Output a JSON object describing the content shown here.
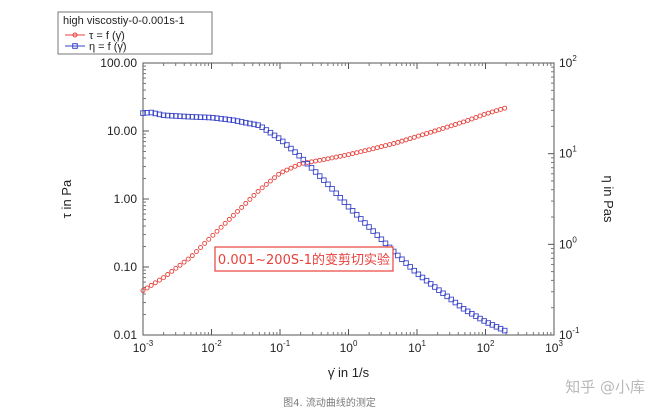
{
  "chart_data": {
    "type": "scatter",
    "title": "",
    "xlabel": "γ̇ in 1/s",
    "ylabel": "τ in Pa",
    "y2label": "η in Pas",
    "xscale": "log",
    "yscale": "log",
    "y2scale": "log",
    "xlim": [
      0.001,
      1000
    ],
    "ylim": [
      0.01,
      100
    ],
    "y2lim": [
      0.1,
      100
    ],
    "x_ticks": [
      {
        "base": "10",
        "exp": "-3"
      },
      {
        "base": "10",
        "exp": "-2"
      },
      {
        "base": "10",
        "exp": "-1"
      },
      {
        "base": "10",
        "exp": "0"
      },
      {
        "base": "10",
        "exp": "1"
      },
      {
        "base": "10",
        "exp": "2"
      },
      {
        "base": "10",
        "exp": "3"
      }
    ],
    "y_ticks": [
      "0.01",
      "0.10",
      "1.00",
      "10.00",
      "100.00"
    ],
    "y2_ticks": [
      {
        "base": "10",
        "exp": "-1"
      },
      {
        "base": "10",
        "exp": "0"
      },
      {
        "base": "10",
        "exp": "1"
      },
      {
        "base": "10",
        "exp": "2"
      }
    ],
    "legend_title": "high viscostiy-0-0.001s-1",
    "legend_position": "top-left",
    "grid": false,
    "series": [
      {
        "name": "τ = f (γ̇)",
        "axis": "left",
        "color": "#e8413b",
        "marker": "circle",
        "x": [
          0.001,
          0.002,
          0.005,
          0.01,
          0.02,
          0.05,
          0.1,
          0.2,
          0.5,
          1,
          2,
          5,
          10,
          20,
          50,
          100,
          200
        ],
        "y": [
          0.045,
          0.07,
          0.14,
          0.28,
          0.55,
          1.35,
          2.4,
          3.3,
          3.9,
          4.5,
          5.3,
          6.7,
          8.3,
          10.3,
          13.8,
          17.8,
          22
        ]
      },
      {
        "name": "η = f (γ̇)",
        "axis": "right",
        "color": "#3a45c9",
        "marker": "square",
        "x": [
          0.001,
          0.0013,
          0.002,
          0.005,
          0.01,
          0.02,
          0.05,
          0.1,
          0.2,
          0.5,
          1,
          2,
          5,
          10,
          20,
          50,
          100,
          200
        ],
        "y": [
          28,
          28.5,
          26.5,
          25.5,
          25,
          23.5,
          20.5,
          14.5,
          9.2,
          4.6,
          2.6,
          1.55,
          0.78,
          0.48,
          0.32,
          0.19,
          0.14,
          0.11
        ]
      }
    ],
    "annotation": "0.001~200S-1的变剪切实验"
  },
  "caption": "图4. 流动曲线的测定",
  "watermark": "知乎 @小库",
  "colors": {
    "tau": "#e8413b",
    "eta": "#3a45c9",
    "annotation_border": "#e8413b"
  }
}
